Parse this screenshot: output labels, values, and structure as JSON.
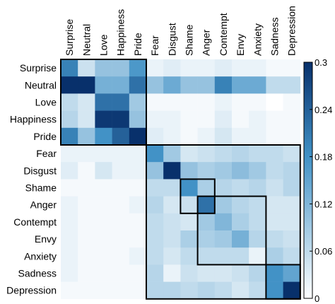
{
  "chart_data": {
    "type": "heatmap",
    "title": "",
    "xlabel": "",
    "ylabel": "",
    "rows": [
      "Surprise",
      "Neutral",
      "Love",
      "Happiness",
      "Pride",
      "Fear",
      "Disgust",
      "Shame",
      "Anger",
      "Contempt",
      "Envy",
      "Anxiety",
      "Sadness",
      "Depression"
    ],
    "columns": [
      "Surprise",
      "Neutral",
      "Love",
      "Happiness",
      "Pride",
      "Fear",
      "Disgust",
      "Shame",
      "Anger",
      "Contempt",
      "Envy",
      "Anxiety",
      "Sadness",
      "Depression"
    ],
    "values": [
      [
        0.2,
        0.05,
        0.1,
        0.1,
        0.17,
        0.02,
        0.03,
        0.02,
        0.02,
        0.03,
        0.02,
        0.02,
        0.01,
        0.01
      ],
      [
        0.3,
        0.3,
        0.13,
        0.13,
        0.22,
        0.1,
        0.14,
        0.1,
        0.1,
        0.2,
        0.14,
        0.14,
        0.06,
        0.06
      ],
      [
        0.06,
        0.04,
        0.22,
        0.22,
        0.09,
        0.01,
        0.01,
        0.01,
        0.01,
        0.02,
        0.01,
        0.01,
        0.0,
        0.01
      ],
      [
        0.07,
        0.04,
        0.29,
        0.29,
        0.1,
        0.02,
        0.02,
        0.01,
        0.01,
        0.03,
        0.01,
        0.02,
        0.01,
        0.01
      ],
      [
        0.2,
        0.1,
        0.18,
        0.24,
        0.3,
        0.03,
        0.02,
        0.01,
        0.02,
        0.04,
        0.02,
        0.02,
        0.01,
        0.01
      ],
      [
        0.02,
        0.02,
        0.02,
        0.02,
        0.02,
        0.18,
        0.09,
        0.04,
        0.05,
        0.06,
        0.07,
        0.06,
        0.06,
        0.05
      ],
      [
        0.03,
        0.01,
        0.04,
        0.02,
        0.02,
        0.1,
        0.3,
        0.1,
        0.08,
        0.09,
        0.11,
        0.09,
        0.06,
        0.07
      ],
      [
        0.01,
        0.01,
        0.01,
        0.01,
        0.01,
        0.06,
        0.06,
        0.18,
        0.08,
        0.07,
        0.06,
        0.07,
        0.05,
        0.07
      ],
      [
        0.02,
        0.01,
        0.01,
        0.01,
        0.02,
        0.07,
        0.04,
        0.05,
        0.22,
        0.09,
        0.07,
        0.06,
        0.04,
        0.04
      ],
      [
        0.02,
        0.01,
        0.01,
        0.01,
        0.01,
        0.06,
        0.05,
        0.04,
        0.09,
        0.12,
        0.08,
        0.06,
        0.04,
        0.04
      ],
      [
        0.02,
        0.01,
        0.01,
        0.01,
        0.01,
        0.06,
        0.05,
        0.08,
        0.08,
        0.09,
        0.13,
        0.07,
        0.06,
        0.05
      ],
      [
        0.02,
        0.01,
        0.01,
        0.01,
        0.02,
        0.06,
        0.04,
        0.06,
        0.06,
        0.06,
        0.06,
        0.02,
        0.08,
        0.06
      ],
      [
        0.02,
        0.01,
        0.01,
        0.01,
        0.01,
        0.07,
        0.02,
        0.05,
        0.04,
        0.04,
        0.05,
        0.07,
        0.18,
        0.15
      ],
      [
        0.01,
        0.01,
        0.01,
        0.01,
        0.01,
        0.07,
        0.07,
        0.06,
        0.07,
        0.06,
        0.04,
        0.06,
        0.18,
        0.3
      ]
    ],
    "zlim": [
      0,
      0.3
    ],
    "colorbar_ticks": [
      0,
      0.06,
      0.12,
      0.18,
      0.24,
      0.3
    ],
    "colorbar_tick_labels": [
      "0",
      "0.06",
      "0.12",
      "0.18",
      "0.24",
      "0.3"
    ],
    "colormap": {
      "low": "#ffffff",
      "high": "#08306b"
    },
    "cluster_boxes": [
      {
        "from": "Surprise",
        "to": "Pride"
      },
      {
        "from": "Fear",
        "to": "Depression"
      },
      {
        "from": "Shame",
        "to": "Anger"
      },
      {
        "from": "Anger",
        "to": "Anxiety"
      },
      {
        "from": "Sadness",
        "to": "Depression"
      }
    ],
    "grid": false
  }
}
